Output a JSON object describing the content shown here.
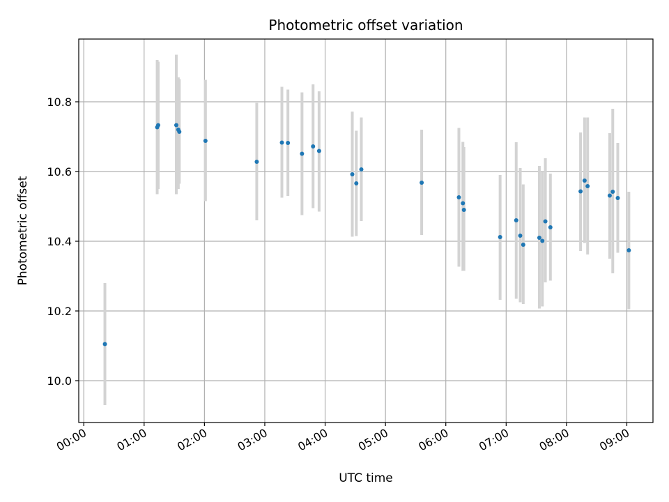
{
  "chart_data": {
    "type": "scatter",
    "title": "Photometric offset variation",
    "xlabel": "UTC time",
    "ylabel": "Photometric offset",
    "x_unit": "hours (UTC, HH:MM)",
    "xlim": [
      "23:55",
      "09:26"
    ],
    "ylim": [
      9.88,
      10.98
    ],
    "x_ticks": [
      "00:00",
      "01:00",
      "02:00",
      "03:00",
      "04:00",
      "05:00",
      "06:00",
      "07:00",
      "08:00",
      "09:00"
    ],
    "y_ticks": [
      "10.0",
      "10.2",
      "10.4",
      "10.6",
      "10.8"
    ],
    "grid": true,
    "colors": {
      "point": "#1f77b4",
      "errorbar": "#d3d3d3",
      "grid": "#b0b0b0"
    },
    "points": [
      {
        "x": "00:21",
        "y": 10.105,
        "ylo": 9.93,
        "yhi": 10.28
      },
      {
        "x": "01:13",
        "y": 10.727,
        "ylo": 10.535,
        "yhi": 10.92
      },
      {
        "x": "01:14",
        "y": 10.733,
        "ylo": 10.55,
        "yhi": 10.915
      },
      {
        "x": "01:32",
        "y": 10.733,
        "ylo": 10.535,
        "yhi": 10.935
      },
      {
        "x": "01:34",
        "y": 10.72,
        "ylo": 10.55,
        "yhi": 10.87
      },
      {
        "x": "01:35",
        "y": 10.714,
        "ylo": 10.565,
        "yhi": 10.865
      },
      {
        "x": "02:01",
        "y": 10.688,
        "ylo": 10.515,
        "yhi": 10.863
      },
      {
        "x": "02:52",
        "y": 10.628,
        "ylo": 10.46,
        "yhi": 10.797
      },
      {
        "x": "03:17",
        "y": 10.683,
        "ylo": 10.525,
        "yhi": 10.843
      },
      {
        "x": "03:23",
        "y": 10.682,
        "ylo": 10.53,
        "yhi": 10.835
      },
      {
        "x": "03:37",
        "y": 10.651,
        "ylo": 10.475,
        "yhi": 10.827
      },
      {
        "x": "03:48",
        "y": 10.672,
        "ylo": 10.495,
        "yhi": 10.85
      },
      {
        "x": "03:54",
        "y": 10.659,
        "ylo": 10.485,
        "yhi": 10.83
      },
      {
        "x": "04:27",
        "y": 10.592,
        "ylo": 10.413,
        "yhi": 10.772
      },
      {
        "x": "04:31",
        "y": 10.566,
        "ylo": 10.415,
        "yhi": 10.717
      },
      {
        "x": "04:36",
        "y": 10.606,
        "ylo": 10.458,
        "yhi": 10.755
      },
      {
        "x": "05:36",
        "y": 10.568,
        "ylo": 10.418,
        "yhi": 10.72
      },
      {
        "x": "06:13",
        "y": 10.526,
        "ylo": 10.327,
        "yhi": 10.725
      },
      {
        "x": "06:17",
        "y": 10.509,
        "ylo": 10.315,
        "yhi": 10.685
      },
      {
        "x": "06:18",
        "y": 10.49,
        "ylo": 10.315,
        "yhi": 10.67
      },
      {
        "x": "06:54",
        "y": 10.412,
        "ylo": 10.232,
        "yhi": 10.59
      },
      {
        "x": "07:10",
        "y": 10.46,
        "ylo": 10.235,
        "yhi": 10.684
      },
      {
        "x": "07:14",
        "y": 10.416,
        "ylo": 10.225,
        "yhi": 10.61
      },
      {
        "x": "07:17",
        "y": 10.39,
        "ylo": 10.22,
        "yhi": 10.563
      },
      {
        "x": "07:33",
        "y": 10.41,
        "ylo": 10.207,
        "yhi": 10.616
      },
      {
        "x": "07:36",
        "y": 10.401,
        "ylo": 10.213,
        "yhi": 10.6
      },
      {
        "x": "07:39",
        "y": 10.457,
        "ylo": 10.282,
        "yhi": 10.638
      },
      {
        "x": "07:44",
        "y": 10.44,
        "ylo": 10.287,
        "yhi": 10.594
      },
      {
        "x": "08:14",
        "y": 10.543,
        "ylo": 10.372,
        "yhi": 10.712
      },
      {
        "x": "08:18",
        "y": 10.574,
        "ylo": 10.395,
        "yhi": 10.755
      },
      {
        "x": "08:21",
        "y": 10.558,
        "ylo": 10.362,
        "yhi": 10.755
      },
      {
        "x": "08:43",
        "y": 10.531,
        "ylo": 10.35,
        "yhi": 10.71
      },
      {
        "x": "08:46",
        "y": 10.542,
        "ylo": 10.308,
        "yhi": 10.78
      },
      {
        "x": "08:51",
        "y": 10.524,
        "ylo": 10.367,
        "yhi": 10.682
      },
      {
        "x": "09:02",
        "y": 10.374,
        "ylo": 10.205,
        "yhi": 10.542
      }
    ]
  }
}
